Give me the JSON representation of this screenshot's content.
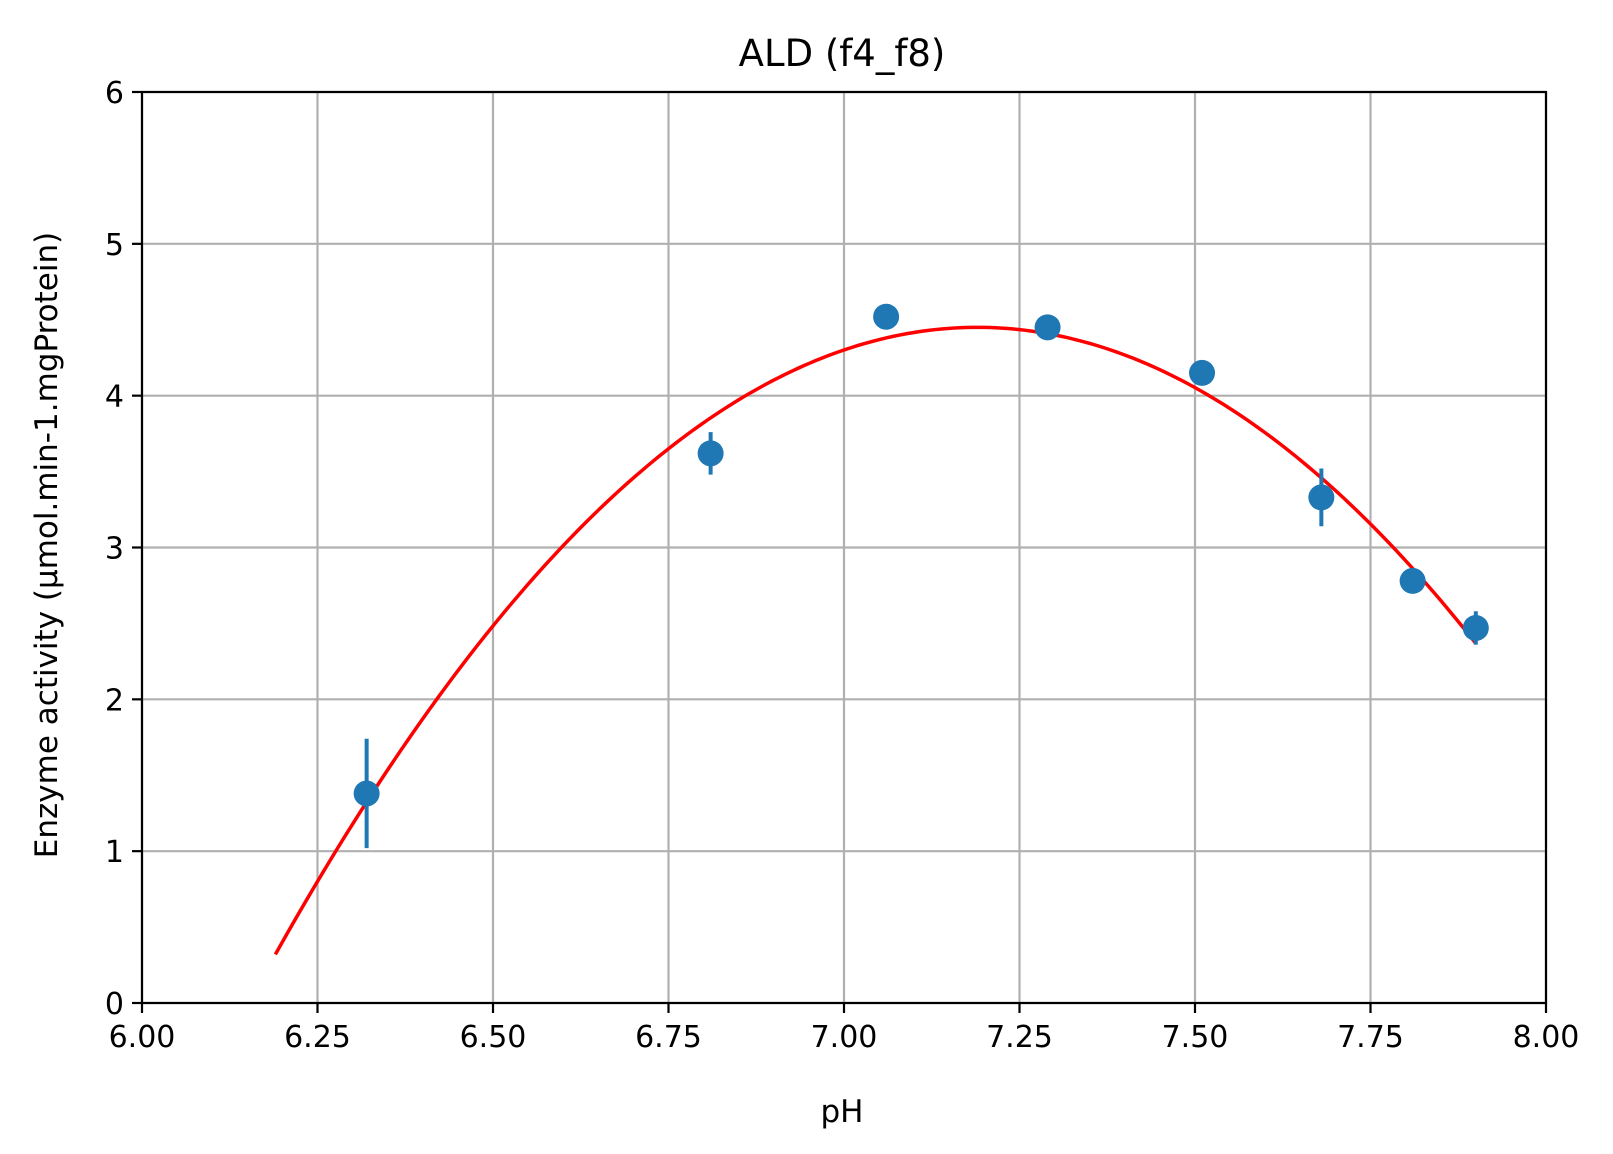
{
  "chart_data": {
    "type": "scatter",
    "title": "ALD (f4_f8)",
    "xlabel": "pH",
    "ylabel": "Enzyme activity (µmol.min-1.mgProtein)",
    "xlim": [
      6.0,
      8.0
    ],
    "ylim": [
      0,
      6
    ],
    "xticks": [
      "6.00",
      "6.25",
      "6.50",
      "6.75",
      "7.00",
      "7.25",
      "7.50",
      "7.75",
      "8.00"
    ],
    "yticks": [
      "0",
      "1",
      "2",
      "3",
      "4",
      "5",
      "6"
    ],
    "grid": true,
    "points": {
      "color": "#1f77b4",
      "x": [
        6.32,
        6.81,
        7.06,
        7.29,
        7.51,
        7.68,
        7.81,
        7.9
      ],
      "y": [
        1.38,
        3.62,
        4.52,
        4.45,
        4.15,
        3.33,
        2.78,
        2.47
      ],
      "error": [
        0.36,
        0.14,
        0.0,
        0.0,
        0.0,
        0.19,
        0.0,
        0.11
      ]
    },
    "fit_curve": {
      "color": "#ff0000",
      "type": "quadratic",
      "x_range": [
        6.19,
        7.9
      ],
      "vertex_x": 7.19,
      "vertex_y": 4.45,
      "a": -4.13
    }
  }
}
